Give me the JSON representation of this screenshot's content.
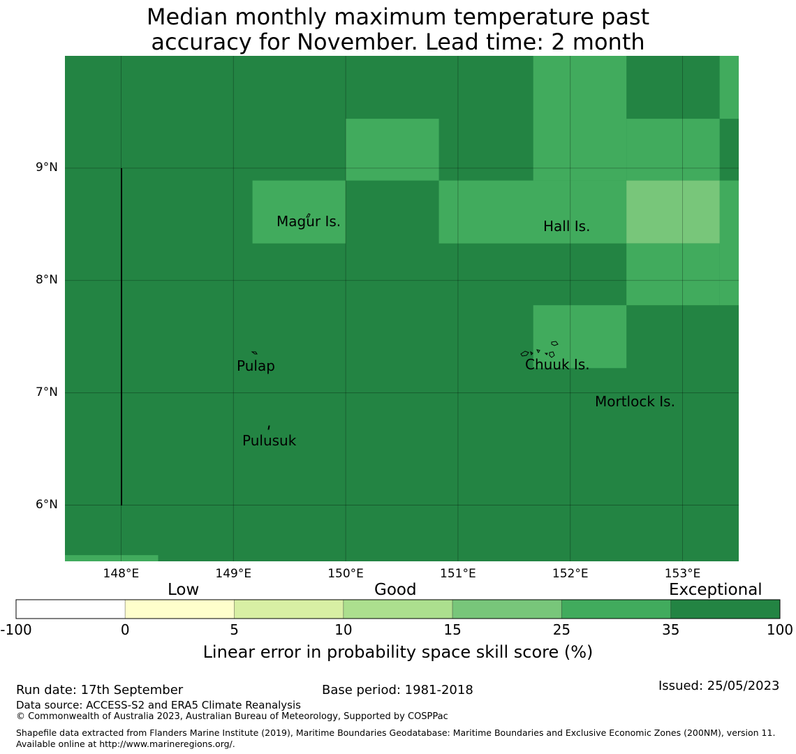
{
  "title": {
    "line1": "Median monthly maximum temperature past",
    "line2": "accuracy for November. Lead time: 2 month"
  },
  "map": {
    "lon_range": [
      147.5,
      153.5
    ],
    "lat_range": [
      5.5,
      10.0
    ],
    "lat_ticks": [
      {
        "value": 9,
        "label": "9°N"
      },
      {
        "value": 8,
        "label": "8°N"
      },
      {
        "value": 7,
        "label": "7°N"
      },
      {
        "value": 6,
        "label": "6°N"
      }
    ],
    "lon_ticks": [
      {
        "value": 148,
        "label": "148°E"
      },
      {
        "value": 149,
        "label": "149°E"
      },
      {
        "value": 150,
        "label": "150°E"
      },
      {
        "value": 151,
        "label": "151°E"
      },
      {
        "value": 152,
        "label": "152°E"
      },
      {
        "value": 153,
        "label": "153°E"
      }
    ],
    "places": {
      "magur": "Magur Is.",
      "hall": "Hall Is.",
      "pulap": "Pulap",
      "chuuk": "Chuuk Is.",
      "mortlock": "Mortlock Is.",
      "pulusuk": "Pulusuk"
    },
    "cells": [
      {
        "lon0": 149.17,
        "lon1": 150.0,
        "lat0": 8.33,
        "lat1": 8.89,
        "category": "good_25"
      },
      {
        "lon0": 150.0,
        "lon1": 150.83,
        "lat0": 8.89,
        "lat1": 9.44,
        "category": "good_25"
      },
      {
        "lon0": 150.83,
        "lon1": 152.5,
        "lat0": 8.33,
        "lat1": 8.89,
        "category": "good_25"
      },
      {
        "lon0": 151.67,
        "lon1": 152.5,
        "lat0": 8.89,
        "lat1": 10.0,
        "category": "good_25"
      },
      {
        "lon0": 152.5,
        "lon1": 153.33,
        "lat0": 8.89,
        "lat1": 9.44,
        "category": "good_25"
      },
      {
        "lon0": 153.33,
        "lon1": 153.5,
        "lat0": 9.44,
        "lat1": 10.0,
        "category": "good_25"
      },
      {
        "lon0": 153.33,
        "lon1": 153.5,
        "lat0": 7.78,
        "lat1": 8.89,
        "category": "good_25"
      },
      {
        "lon0": 152.5,
        "lon1": 153.33,
        "lat0": 8.33,
        "lat1": 8.89,
        "category": "good_15"
      },
      {
        "lon0": 152.5,
        "lon1": 153.33,
        "lat0": 7.78,
        "lat1": 8.33,
        "category": "good_25"
      },
      {
        "lon0": 151.67,
        "lon1": 152.5,
        "lat0": 7.22,
        "lat1": 7.78,
        "category": "good_25"
      },
      {
        "lon0": 147.5,
        "lon1": 148.33,
        "lat0": 5.5,
        "lat1": 5.555,
        "category": "good_25"
      }
    ]
  },
  "colorbar": {
    "categories": {
      "low": "Low",
      "good": "Good",
      "exceptional": "Exceptional"
    },
    "ticks": [
      "-100",
      "0",
      "5",
      "10",
      "15",
      "25",
      "35",
      "100"
    ],
    "colors": [
      "#ffffff",
      "#fefecc",
      "#d8efa4",
      "#acdf8e",
      "#78c67a",
      "#41ab5d",
      "#238443"
    ],
    "title": "Linear error in probability space skill score (%)"
  },
  "colors": {
    "exceptional": "#238443",
    "good_25": "#41ab5d",
    "good_15": "#78c67a"
  },
  "footer": {
    "run_date": "Run date: 17th September",
    "base_period": "Base period: 1981-2018",
    "issued": "Issued: 25/05/2023",
    "data_source": "Data source: ACCESS-S2 and ERA5 Climate Reanalysis",
    "copyright": "© Commonwealth of Australia 2023, Australian Bureau of Meteorology, Supported by COSPPac",
    "shapefile": "Shapefile data extracted from Flanders Marine Institute (2019), Maritime Boundaries Geodatabase: Maritime Boundaries and Exclusive Economic Zones (200NM), version 11. Available online at http://www.marineregions.org/."
  }
}
